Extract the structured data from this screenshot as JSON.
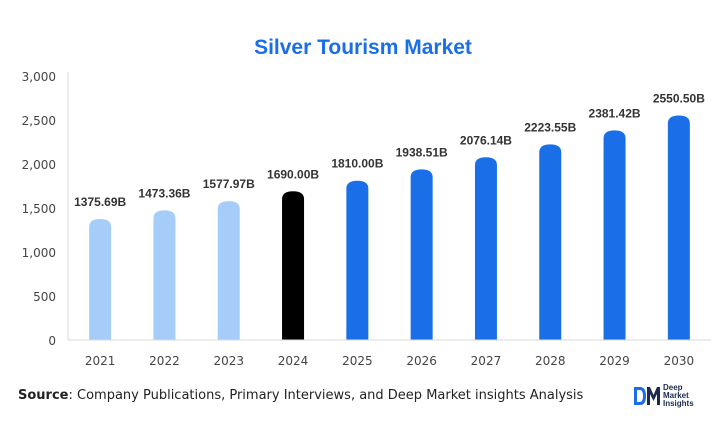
{
  "chart_data": {
    "type": "bar",
    "title": "Silver Tourism Market",
    "xlabel": "",
    "ylabel": "",
    "categories": [
      "2021",
      "2022",
      "2023",
      "2024",
      "2025",
      "2026",
      "2027",
      "2028",
      "2029",
      "2030"
    ],
    "values": [
      1375.69,
      1473.36,
      1577.97,
      1690.0,
      1810.0,
      1938.51,
      2076.14,
      2223.55,
      2381.42,
      2550.5
    ],
    "data_labels": [
      "1375.69B",
      "1473.36B",
      "1577.97B",
      "1690.00B",
      "1810.00B",
      "1938.51B",
      "2076.14B",
      "2223.55B",
      "2381.42B",
      "2550.50B"
    ],
    "ylim": [
      0,
      3000
    ],
    "yticks": [
      0,
      500,
      1000,
      1500,
      2000,
      2500,
      3000
    ],
    "ytick_labels": [
      "0",
      "500",
      "1,000",
      "1,500",
      "2,000",
      "2,500",
      "3,000"
    ],
    "grid": false,
    "bar_colors": [
      "#a6cdf9",
      "#a6cdf9",
      "#a6cdf9",
      "#000000",
      "#1a6fe8",
      "#1a6fe8",
      "#1a6fe8",
      "#1a6fe8",
      "#1a6fe8",
      "#1a6fe8"
    ]
  },
  "source": {
    "label": "Source",
    "text": ": Company Publications, Primary Interviews, and Deep Market insights Analysis"
  },
  "logo": {
    "mark": "DM",
    "line1": "Deep",
    "line2": "Market",
    "line3": "Insights",
    "colors": [
      "#1a6fe8",
      "#1b2a4e"
    ]
  }
}
